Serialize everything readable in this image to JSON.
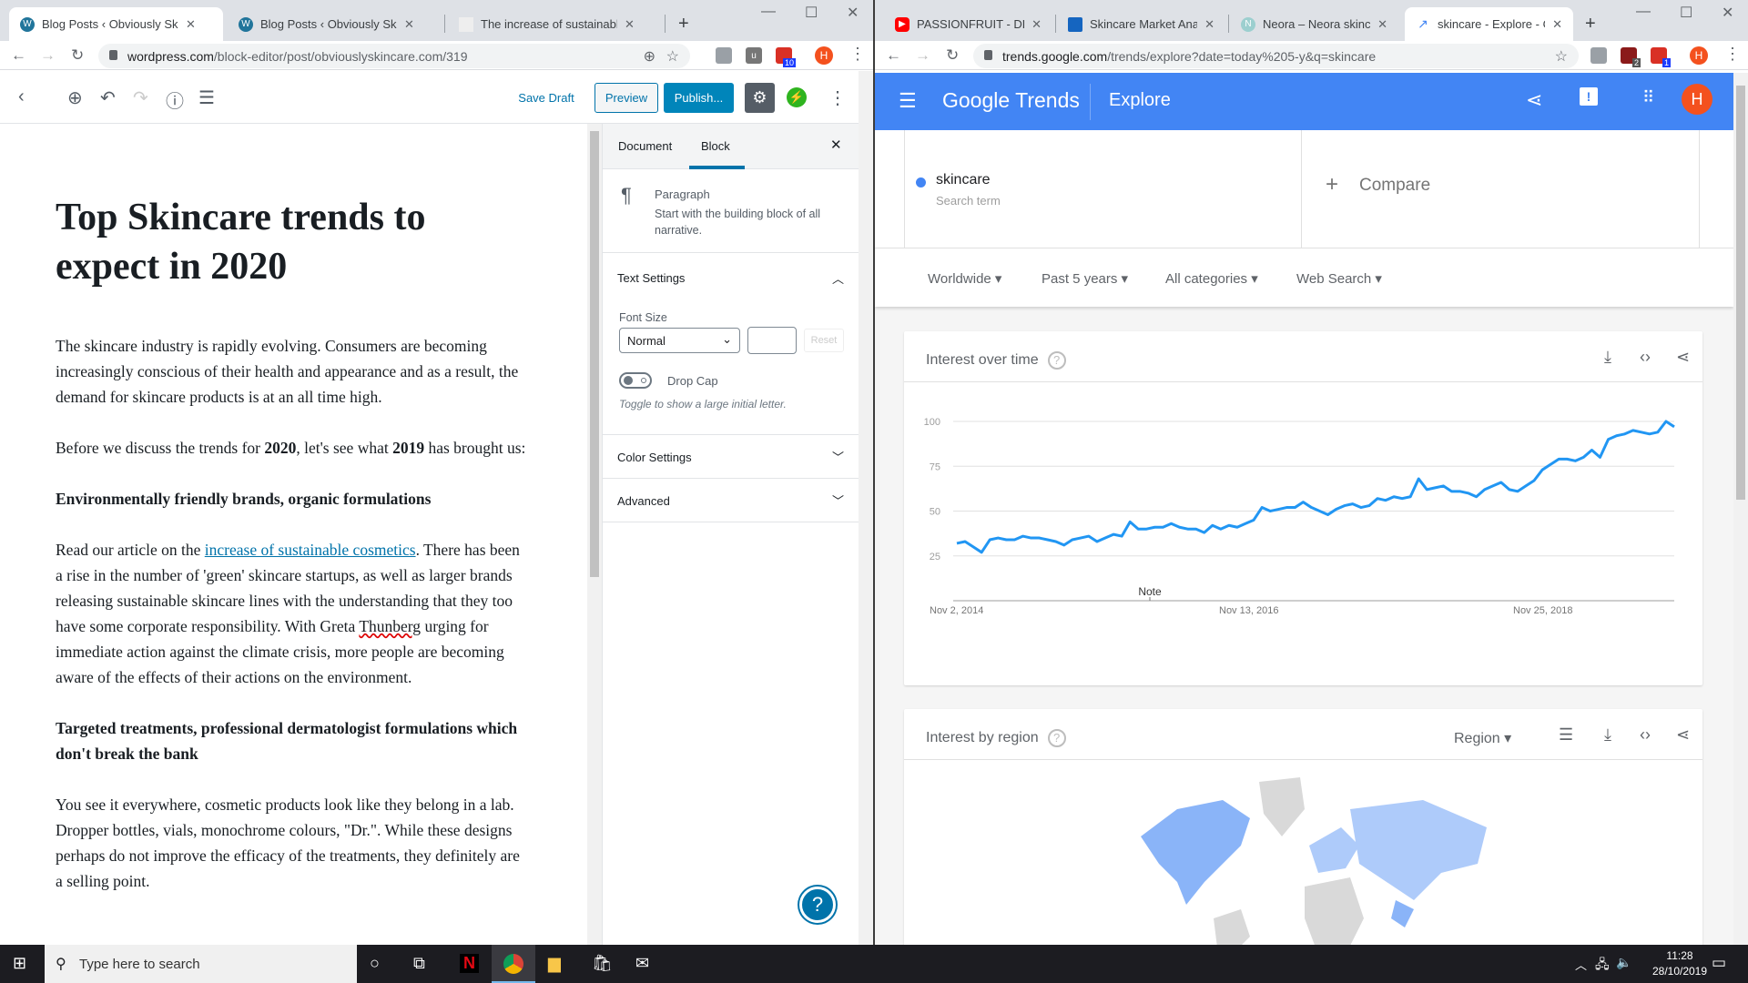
{
  "left_browser": {
    "tabs": [
      {
        "title": "Blog Posts ‹ Obviously Skincare —",
        "active": true
      },
      {
        "title": "Blog Posts ‹ Obviously Skincare —",
        "active": false
      },
      {
        "title": "The increase of sustainable cosm",
        "active": false
      }
    ],
    "url_domain": "wordpress.com",
    "url_path": "/block-editor/post/obviouslyskincare.com/319",
    "ext_badge": "10",
    "profile": "H"
  },
  "wordpress": {
    "toolbar": {
      "save_draft": "Save Draft",
      "preview": "Preview",
      "publish": "Publish..."
    },
    "post": {
      "title": "Top Skincare trends to expect in 2020",
      "p1": "The skincare industry is rapidly evolving. Consumers are becoming increasingly conscious of their health and appearance and as a result, the demand for skincare products is at an all time high.",
      "p2_a": "Before we discuss the trends for ",
      "p2_b": "2020",
      "p2_c": ", let's see what ",
      "p2_d": "2019",
      "p2_e": " has brought us:",
      "h2": "Environmentally friendly brands, organic formulations",
      "p3_a": "Read our article on the ",
      "p3_link": "increase of sustainable cosmetics",
      "p3_b": ". There has been a rise in the number of 'green' skincare startups, as well as larger brands releasing sustainable skincare lines with the understanding that they too have some corporate responsibility. With Greta ",
      "p3_sq": "Thunberg",
      "p3_c": " urging for immediate action against the climate crisis, more people are becoming aware of the effects of their actions on the environment.",
      "h3": "Targeted treatments, professional dermatologist formulations which don't break the bank",
      "p4": "You see it everywhere, cosmetic products look like they belong in a lab. Dropper bottles, vials, monochrome colours, \"Dr.\". While these designs perhaps do not improve the efficacy of the treatments, they definitely are a selling point."
    },
    "sidebar": {
      "tabs": [
        "Document",
        "Block"
      ],
      "active_tab": "Block",
      "block_name": "Paragraph",
      "block_desc": "Start with the building block of all narrative.",
      "text_settings": "Text Settings",
      "font_size_label": "Font Size",
      "font_size_value": "Normal",
      "custom_size": "",
      "reset": "Reset",
      "drop_cap": "Drop Cap",
      "drop_cap_on": false,
      "drop_cap_help": "Toggle to show a large initial letter.",
      "color_settings": "Color Settings",
      "advanced": "Advanced"
    }
  },
  "right_browser": {
    "tabs": [
      {
        "title": "PASSIONFRUIT - DRAK",
        "active": false
      },
      {
        "title": "Skincare Market Analy",
        "active": false
      },
      {
        "title": "Neora – Neora skincar",
        "active": false
      },
      {
        "title": "skincare - Explore - Go",
        "active": true
      }
    ],
    "url_domain": "trends.google.com",
    "url_path": "/trends/explore?date=today%205-y&q=skincare",
    "ext_badge_1": "2",
    "ext_badge_2": "1",
    "profile": "H"
  },
  "trends": {
    "logo": "Google Trends",
    "section": "Explore",
    "profile": "H",
    "term": "skincare",
    "term_type": "Search term",
    "compare": "Compare",
    "filters": [
      "Worldwide",
      "Past 5 years",
      "All categories",
      "Web Search"
    ],
    "interest_over_time": "Interest over time",
    "interest_by_region": "Interest by region",
    "region_select": "Region",
    "colors": {
      "header": "#4285f4",
      "series": "#2196f3"
    }
  },
  "chart_data": {
    "type": "line",
    "title": "Interest over time",
    "x_start": "Nov 2, 2014",
    "x_ticks": [
      "Nov 2, 2014",
      "Nov 13, 2016",
      "Nov 25, 2018"
    ],
    "y_ticks": [
      25,
      50,
      75,
      100
    ],
    "ylim": [
      0,
      100
    ],
    "annotation": "Note",
    "grid": true,
    "series": [
      {
        "name": "skincare",
        "values": [
          32,
          33,
          30,
          27,
          34,
          35,
          34,
          34,
          36,
          35,
          35,
          34,
          33,
          31,
          34,
          35,
          36,
          33,
          35,
          37,
          36,
          44,
          40,
          40,
          41,
          41,
          43,
          41,
          40,
          40,
          38,
          42,
          40,
          42,
          41,
          43,
          45,
          52,
          50,
          51,
          52,
          52,
          55,
          52,
          50,
          48,
          51,
          53,
          54,
          52,
          53,
          57,
          56,
          58,
          57,
          58,
          68,
          62,
          63,
          64,
          61,
          61,
          60,
          58,
          62,
          64,
          66,
          62,
          61,
          64,
          67,
          73,
          76,
          79,
          79,
          78,
          80,
          84,
          80,
          90,
          92,
          93,
          95,
          94,
          93,
          94,
          100,
          97
        ]
      }
    ]
  },
  "taskbar": {
    "search_placeholder": "Type here to search",
    "time": "11:28",
    "date": "28/10/2019"
  }
}
